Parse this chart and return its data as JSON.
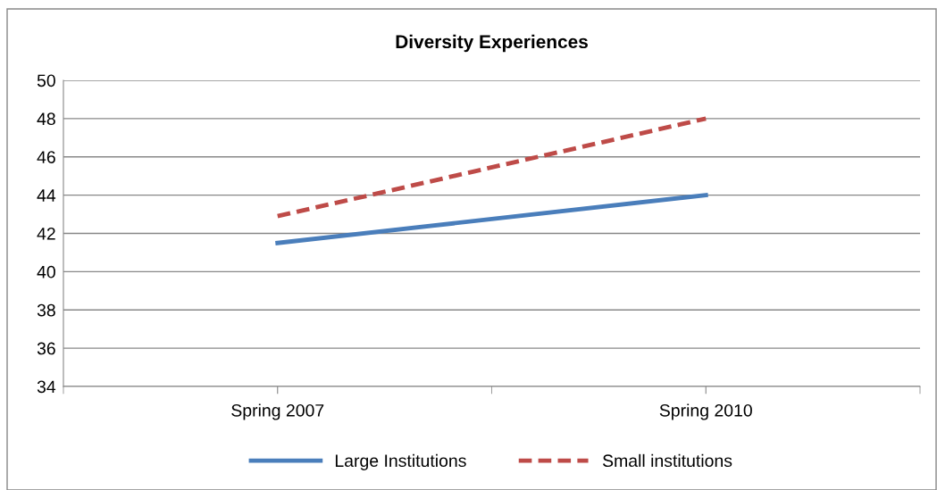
{
  "chart_data": {
    "type": "line",
    "title": "Diversity Experiences",
    "categories": [
      "Spring 2007",
      "Spring 2010"
    ],
    "series": [
      {
        "name": "Large Institutions",
        "color": "#4a7ebb",
        "values": [
          41.5,
          44.0
        ],
        "line_style": "solid"
      },
      {
        "name": "Small institutions",
        "color": "#be4b48",
        "values": [
          42.9,
          48.0
        ],
        "line_style": "dashed"
      }
    ],
    "ylim": [
      34,
      50
    ],
    "yticks": [
      34,
      36,
      38,
      40,
      42,
      44,
      46,
      48,
      50
    ],
    "grid": "y",
    "legend": "bottom",
    "marker": "none"
  }
}
